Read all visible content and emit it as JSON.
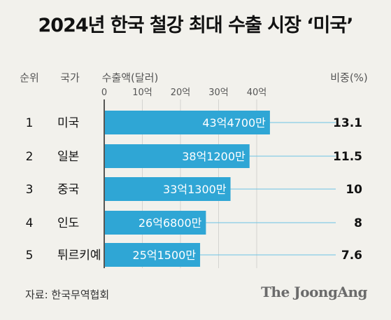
{
  "title": "2024년 한국 철강 최대 수출 시장 ‘미국’",
  "headers": {
    "rank": "순위",
    "country": "국가",
    "amount": "수출액(달러)",
    "share": "비중(%)"
  },
  "source": "자료: 한국무역협회",
  "brand": "The JoongAng",
  "colors": {
    "bar": "#2fa6d5",
    "background": "#f2f1ec",
    "leader": "#6cc3e3"
  },
  "chart_data": {
    "type": "bar",
    "orientation": "horizontal",
    "title": "2024년 한국 철강 최대 수출 시장 ‘미국’",
    "xlabel": "수출액(달러)",
    "xlim": [
      0,
      40
    ],
    "ticks": [
      "0",
      "10억",
      "20억",
      "30억",
      "40억"
    ],
    "tick_values": [
      0,
      10,
      20,
      30,
      40
    ],
    "unit": "억 달러",
    "rows": [
      {
        "rank": "1",
        "country": "미국",
        "value": 43.47,
        "label": "43억4700만",
        "share": "13.1"
      },
      {
        "rank": "2",
        "country": "일본",
        "value": 38.12,
        "label": "38억1200만",
        "share": "11.5"
      },
      {
        "rank": "3",
        "country": "중국",
        "value": 33.13,
        "label": "33억1300만",
        "share": "10"
      },
      {
        "rank": "4",
        "country": "인도",
        "value": 26.68,
        "label": "26억6800만",
        "share": "8"
      },
      {
        "rank": "5",
        "country": "튀르키예",
        "value": 25.15,
        "label": "25억1500만",
        "share": "7.6"
      }
    ],
    "grid": true
  }
}
